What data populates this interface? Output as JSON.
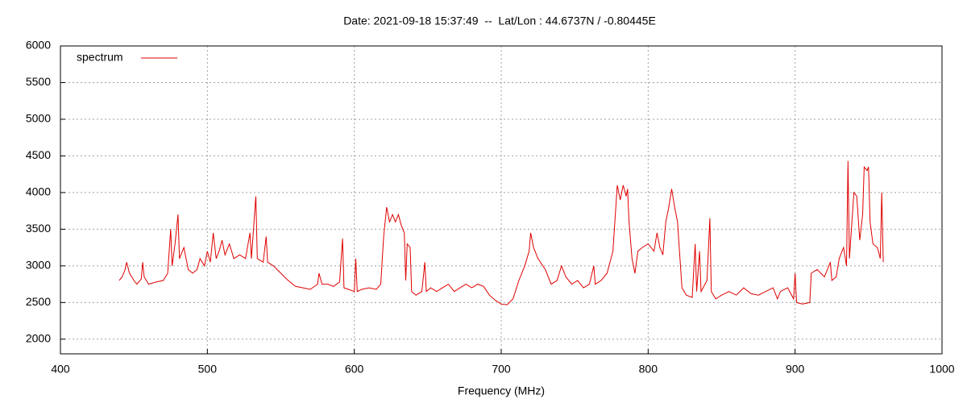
{
  "chart_data": {
    "type": "line",
    "title": "Date: 2021-09-18 15:37:49  --  Lat/Lon : 44.6737N / -0.80445E",
    "x_label": "Frequency (MHz)",
    "xlim": [
      400,
      1000
    ],
    "xticks": [
      400,
      500,
      600,
      700,
      800,
      900,
      1000
    ],
    "ylim": [
      1800,
      6000
    ],
    "yticks": [
      2000,
      2500,
      3000,
      3500,
      4000,
      4500,
      5000,
      5500,
      6000
    ],
    "grid": true,
    "legend": "top-left",
    "x": [
      440,
      442,
      444,
      445,
      447,
      450,
      452,
      455,
      456,
      457,
      460,
      465,
      470,
      473,
      475,
      476,
      478,
      480,
      481,
      484,
      487,
      490,
      493,
      495,
      498,
      500,
      502,
      504,
      506,
      508,
      510,
      512,
      515,
      518,
      522,
      526,
      529,
      530,
      533,
      534,
      538,
      540,
      541,
      545,
      550,
      555,
      560,
      565,
      570,
      575,
      576,
      578,
      582,
      586,
      590,
      592,
      593,
      596,
      600,
      601,
      602,
      605,
      610,
      615,
      618,
      620,
      622,
      624,
      626,
      628,
      630,
      632,
      634,
      635,
      636,
      638,
      639,
      642,
      646,
      648,
      649,
      652,
      656,
      660,
      664,
      668,
      672,
      676,
      680,
      684,
      688,
      692,
      696,
      700,
      704,
      708,
      712,
      716,
      719,
      720,
      722,
      725,
      730,
      734,
      738,
      741,
      744,
      748,
      752,
      756,
      760,
      763,
      764,
      768,
      772,
      776,
      778,
      779,
      781,
      783,
      785,
      786,
      787,
      789,
      791,
      793,
      796,
      800,
      804,
      806,
      808,
      810,
      812,
      814,
      816,
      818,
      820,
      821,
      823,
      826,
      830,
      832,
      833,
      835,
      836,
      840,
      842,
      843,
      846,
      850,
      855,
      860,
      865,
      870,
      875,
      880,
      885,
      888,
      890,
      895,
      899,
      900,
      901,
      905,
      910,
      911,
      915,
      920,
      924,
      925,
      928,
      930,
      933,
      935,
      936,
      937,
      939,
      940,
      942,
      944,
      946,
      947,
      949,
      950,
      951,
      953,
      956,
      958,
      959,
      960
    ],
    "series": [
      {
        "name": "spectrum",
        "color": "#e00000",
        "values": [
          2800,
          2850,
          2950,
          3050,
          2900,
          2800,
          2750,
          2820,
          3050,
          2850,
          2750,
          2780,
          2800,
          2900,
          3500,
          3000,
          3300,
          3700,
          3100,
          3250,
          2950,
          2900,
          2950,
          3100,
          3000,
          3200,
          3050,
          3450,
          3100,
          3200,
          3350,
          3150,
          3300,
          3100,
          3150,
          3100,
          3450,
          3100,
          3950,
          3100,
          3050,
          3400,
          3050,
          3000,
          2900,
          2800,
          2720,
          2700,
          2680,
          2750,
          2900,
          2750,
          2750,
          2720,
          2780,
          3370,
          2700,
          2680,
          2650,
          3100,
          2650,
          2680,
          2700,
          2680,
          2750,
          3400,
          3800,
          3600,
          3700,
          3600,
          3700,
          3550,
          3450,
          2800,
          3300,
          3250,
          2650,
          2600,
          2650,
          3050,
          2650,
          2700,
          2650,
          2700,
          2750,
          2650,
          2700,
          2750,
          2700,
          2750,
          2720,
          2600,
          2530,
          2480,
          2470,
          2550,
          2800,
          3000,
          3200,
          3450,
          3250,
          3100,
          2950,
          2750,
          2800,
          3000,
          2850,
          2750,
          2800,
          2700,
          2750,
          3000,
          2750,
          2800,
          2900,
          3200,
          3800,
          4100,
          3900,
          4100,
          3950,
          4050,
          3600,
          3100,
          2900,
          3200,
          3250,
          3300,
          3200,
          3450,
          3250,
          3150,
          3600,
          3800,
          4050,
          3800,
          3600,
          3300,
          2700,
          2600,
          2570,
          3300,
          2650,
          3200,
          2650,
          2800,
          3650,
          2650,
          2550,
          2600,
          2650,
          2600,
          2700,
          2620,
          2600,
          2650,
          2700,
          2550,
          2650,
          2700,
          2550,
          2900,
          2500,
          2480,
          2500,
          2900,
          2950,
          2850,
          3050,
          2800,
          2850,
          3100,
          3250,
          3000,
          4430,
          3100,
          3700,
          4000,
          3950,
          3350,
          3700,
          4350,
          4300,
          4350,
          3600,
          3300,
          3250,
          3100,
          4000,
          3050
        ]
      }
    ]
  }
}
